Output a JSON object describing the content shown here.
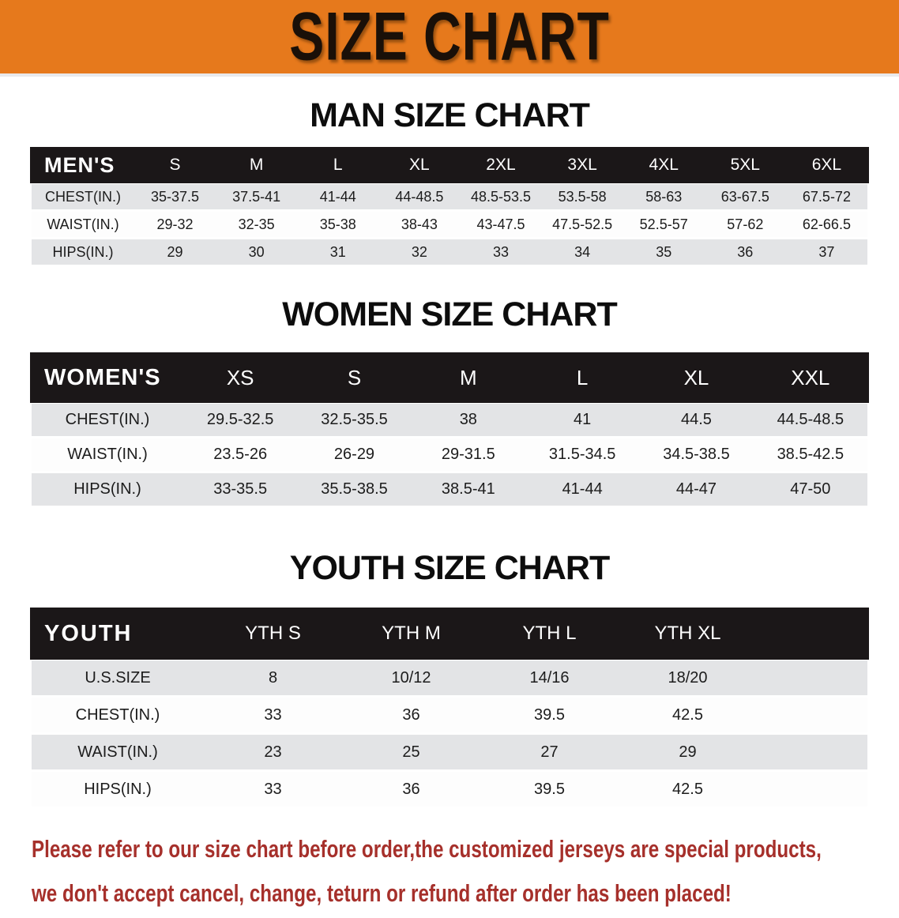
{
  "banner": {
    "title": "SIZE CHART",
    "bg_color": "#E6791C",
    "text_color": "#1a1008"
  },
  "sections": [
    {
      "title": "MAN SIZE CHART",
      "table": {
        "header_label": "MEN'S",
        "columns": [
          "S",
          "M",
          "L",
          "XL",
          "2XL",
          "3XL",
          "4XL",
          "5XL",
          "6XL"
        ],
        "rows": [
          {
            "label": "CHEST(IN.)",
            "values": [
              "35-37.5",
              "37.5-41",
              "41-44",
              "44-48.5",
              "48.5-53.5",
              "53.5-58",
              "58-63",
              "63-67.5",
              "67.5-72"
            ]
          },
          {
            "label": "WAIST(IN.)",
            "values": [
              "29-32",
              "32-35",
              "35-38",
              "38-43",
              "43-47.5",
              "47.5-52.5",
              "52.5-57",
              "57-62",
              "62-66.5"
            ]
          },
          {
            "label": "HIPS(IN.)",
            "values": [
              "29",
              "30",
              "31",
              "32",
              "33",
              "34",
              "35",
              "36",
              "37"
            ]
          }
        ]
      }
    },
    {
      "title": "WOMEN SIZE CHART",
      "table": {
        "header_label": "WOMEN'S",
        "columns": [
          "XS",
          "S",
          "M",
          "L",
          "XL",
          "XXL"
        ],
        "rows": [
          {
            "label": "CHEST(IN.)",
            "values": [
              "29.5-32.5",
              "32.5-35.5",
              "38",
              "41",
              "44.5",
              "44.5-48.5"
            ]
          },
          {
            "label": "WAIST(IN.)",
            "values": [
              "23.5-26",
              "26-29",
              "29-31.5",
              "31.5-34.5",
              "34.5-38.5",
              "38.5-42.5"
            ]
          },
          {
            "label": "HIPS(IN.)",
            "values": [
              "33-35.5",
              "35.5-38.5",
              "38.5-41",
              "41-44",
              "44-47",
              "47-50"
            ]
          }
        ]
      }
    },
    {
      "title": "YOUTH SIZE CHART",
      "table": {
        "header_label": "YOUTH",
        "columns": [
          "YTH S",
          "YTH M",
          "YTH L",
          "YTH XL"
        ],
        "rows": [
          {
            "label": "U.S.SIZE",
            "values": [
              "8",
              "10/12",
              "14/16",
              "18/20"
            ]
          },
          {
            "label": "CHEST(IN.)",
            "values": [
              "33",
              "36",
              "39.5",
              "42.5"
            ]
          },
          {
            "label": "WAIST(IN.)",
            "values": [
              "23",
              "25",
              "27",
              "29"
            ]
          },
          {
            "label": "HIPS(IN.)",
            "values": [
              "33",
              "36",
              "39.5",
              "42.5"
            ]
          }
        ]
      }
    }
  ],
  "disclaimer": {
    "line1": "Please refer to our size chart before order,the customized jerseys are special products,",
    "line2": "we don't accept cancel, change, teturn or refund after order has been placed!",
    "color": "#A6302B"
  },
  "colors": {
    "banner_orange": "#E6791C",
    "header_black": "#1b1718",
    "row_gray": "#E3E4E6",
    "row_white": "#fdfdfd",
    "disclaimer_red": "#A6302B"
  }
}
